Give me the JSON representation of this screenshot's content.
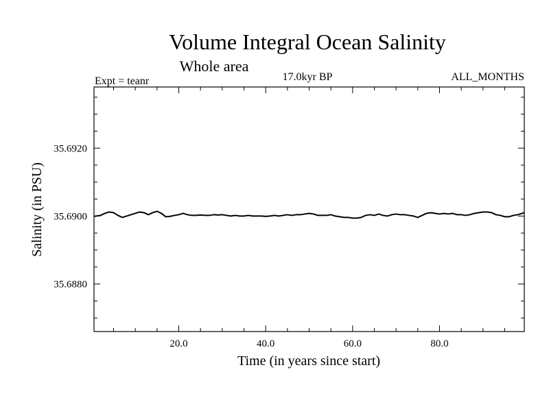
{
  "chart_data": {
    "type": "line",
    "title": "Volume Integral Ocean Salinity",
    "subtitle": "Whole area",
    "left_label": "Expt = teanr",
    "center_label": "17.0kyr BP",
    "right_label": "ALL_MONTHS",
    "xlabel": "Time (in years since start)",
    "ylabel": "Salinity (in PSU)",
    "xlim": [
      0.5,
      99.5
    ],
    "ylim": [
      35.6866,
      35.6938
    ],
    "x_ticks": [
      20.0,
      40.0,
      60.0,
      80.0
    ],
    "x_tick_labels": [
      "20.0",
      "40.0",
      "60.0",
      "80.0"
    ],
    "y_ticks": [
      35.688,
      35.69,
      35.692
    ],
    "y_tick_labels": [
      "35.6880",
      "35.6900",
      "35.6920"
    ],
    "grid": false,
    "series": [
      {
        "name": "salinity",
        "x": [
          0.5,
          2,
          3,
          4,
          5,
          6,
          7,
          8,
          9,
          10,
          11,
          12,
          13,
          14,
          15,
          16,
          17,
          18,
          19,
          20,
          21,
          22,
          23,
          24,
          25,
          26,
          27,
          28,
          29,
          30,
          31,
          32,
          33,
          34,
          35,
          36,
          37,
          38,
          39,
          40,
          41,
          42,
          43,
          44,
          45,
          46,
          47,
          48,
          49,
          50,
          51,
          52,
          53,
          54,
          55,
          56,
          57,
          58,
          59,
          60,
          61,
          62,
          63,
          64,
          65,
          66,
          67,
          68,
          69,
          70,
          71,
          72,
          73,
          74,
          75,
          76,
          77,
          78,
          79,
          80,
          81,
          82,
          83,
          84,
          85,
          86,
          87,
          88,
          89,
          90,
          91,
          92,
          93,
          94,
          95,
          96,
          97,
          98,
          99.5
        ],
        "values": [
          35.68999,
          35.69002,
          35.69008,
          35.69012,
          35.6901,
          35.69002,
          35.68996,
          35.69,
          35.69004,
          35.69008,
          35.69012,
          35.6901,
          35.69004,
          35.6901,
          35.69014,
          35.69008,
          35.68998,
          35.68999,
          35.69002,
          35.69004,
          35.69008,
          35.69004,
          35.69002,
          35.69002,
          35.69003,
          35.69002,
          35.69002,
          35.69004,
          35.69003,
          35.69004,
          35.69002,
          35.69,
          35.69002,
          35.69,
          35.69,
          35.69002,
          35.69,
          35.69,
          35.69,
          35.68999,
          35.69,
          35.69002,
          35.69,
          35.69002,
          35.69004,
          35.69002,
          35.69004,
          35.69004,
          35.69006,
          35.69008,
          35.69006,
          35.69002,
          35.69002,
          35.69002,
          35.69004,
          35.69,
          35.68998,
          35.68996,
          35.68996,
          35.68994,
          35.68994,
          35.68996,
          35.69002,
          35.69004,
          35.69002,
          35.69006,
          35.69002,
          35.69,
          35.69004,
          35.69006,
          35.69004,
          35.69004,
          35.69002,
          35.69,
          35.68996,
          35.69002,
          35.69008,
          35.6901,
          35.69008,
          35.69006,
          35.69008,
          35.69006,
          35.69008,
          35.69004,
          35.69004,
          35.69002,
          35.69004,
          35.69008,
          35.6901,
          35.69012,
          35.69012,
          35.6901,
          35.69004,
          35.69002,
          35.68998,
          35.68998,
          35.69002,
          35.69004,
          35.6901
        ]
      }
    ]
  }
}
